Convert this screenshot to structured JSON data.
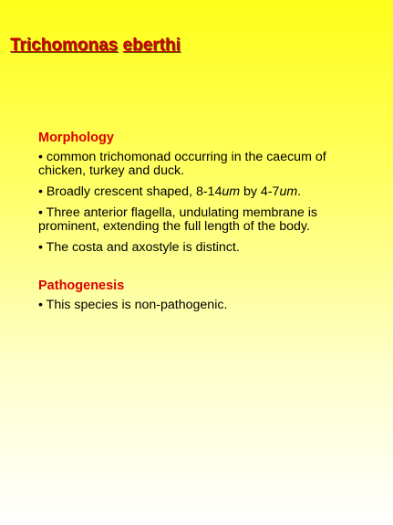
{
  "title": {
    "genus": "Trichomonas",
    "species": "eberthi"
  },
  "morphology": {
    "heading": "Morphology",
    "bullet1": "• common trichomonad occurring in the caecum of chicken, turkey and duck.",
    "bullet2": {
      "prefix": "• Broadly crescent shaped, 8-14",
      "unit1": "um",
      "middle": " by 4-7",
      "unit2": "um",
      "suffix": "."
    },
    "bullet3": "• Three anterior flagella, undulating membrane is prominent, extending the full length of the body.",
    "bullet4": "• The costa and axostyle is distinct."
  },
  "pathogenesis": {
    "heading": "Pathogenesis",
    "bullet1": "• This species is non-pathogenic."
  }
}
